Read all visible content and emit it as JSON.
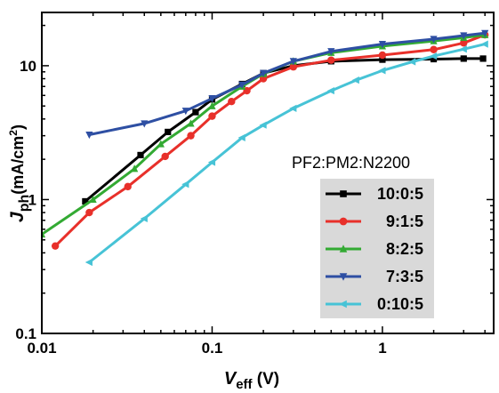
{
  "chart_data": {
    "type": "line",
    "xscale": "log",
    "yscale": "log",
    "xlim": [
      0.01,
      4.5
    ],
    "ylim": [
      0.1,
      25
    ],
    "x_ticks": [
      {
        "value": 0.01,
        "label": "0.01"
      },
      {
        "value": 0.1,
        "label": "0.1"
      },
      {
        "value": 1,
        "label": "1"
      }
    ],
    "y_ticks": [
      {
        "value": 0.1,
        "label": "0.1"
      },
      {
        "value": 1,
        "label": "1"
      },
      {
        "value": 10,
        "label": "10"
      }
    ],
    "xlabel": {
      "main": "V",
      "sub": "eff",
      "unit": " (V)"
    },
    "ylabel": {
      "main": "J",
      "sub": "ph",
      "unit_pre": "(mA/cm",
      "unit_sup": "2",
      "unit_post": ")"
    },
    "annotation": "PF2:PM2:N2200",
    "legend_position": "lower-right",
    "series": [
      {
        "name": "10:0:5",
        "color": "#000000",
        "marker": "square",
        "points": [
          [
            0.018,
            0.97
          ],
          [
            0.038,
            2.15
          ],
          [
            0.055,
            3.2
          ],
          [
            0.08,
            4.5
          ],
          [
            0.1,
            5.6
          ],
          [
            0.15,
            7.3
          ],
          [
            0.2,
            8.8
          ],
          [
            0.3,
            10.0
          ],
          [
            0.5,
            10.8
          ],
          [
            1.0,
            11.1
          ],
          [
            2.0,
            11.2
          ],
          [
            3.0,
            11.3
          ],
          [
            3.9,
            11.3
          ]
        ]
      },
      {
        "name": "9:1:5",
        "color": "#e8302a",
        "marker": "circle",
        "points": [
          [
            0.012,
            0.45
          ],
          [
            0.019,
            0.8
          ],
          [
            0.032,
            1.25
          ],
          [
            0.053,
            2.1
          ],
          [
            0.075,
            3.0
          ],
          [
            0.1,
            4.2
          ],
          [
            0.13,
            5.4
          ],
          [
            0.16,
            6.5
          ],
          [
            0.2,
            8.0
          ],
          [
            0.3,
            9.8
          ],
          [
            0.5,
            11.0
          ],
          [
            1.0,
            12.0
          ],
          [
            2.0,
            13.2
          ],
          [
            3.0,
            14.8
          ],
          [
            4.0,
            17.0
          ]
        ]
      },
      {
        "name": "8:2:5",
        "color": "#33aa33",
        "marker": "triangle-up",
        "points": [
          [
            0.01,
            0.55
          ],
          [
            0.02,
            1.0
          ],
          [
            0.035,
            1.7
          ],
          [
            0.05,
            2.6
          ],
          [
            0.075,
            3.7
          ],
          [
            0.1,
            5.0
          ],
          [
            0.15,
            7.0
          ],
          [
            0.2,
            8.7
          ],
          [
            0.3,
            10.8
          ],
          [
            0.5,
            12.5
          ],
          [
            1.0,
            14.0
          ],
          [
            2.0,
            15.3
          ],
          [
            3.0,
            16.2
          ],
          [
            4.0,
            17.0
          ]
        ]
      },
      {
        "name": "7:3:5",
        "color": "#2e4fa3",
        "marker": "triangle-down",
        "points": [
          [
            0.019,
            3.05
          ],
          [
            0.04,
            3.7
          ],
          [
            0.07,
            4.6
          ],
          [
            0.1,
            5.7
          ],
          [
            0.15,
            7.2
          ],
          [
            0.2,
            8.8
          ],
          [
            0.3,
            10.8
          ],
          [
            0.5,
            12.8
          ],
          [
            1.0,
            14.5
          ],
          [
            2.0,
            15.8
          ],
          [
            3.0,
            16.8
          ],
          [
            4.0,
            17.5
          ]
        ]
      },
      {
        "name": "0:10:5",
        "color": "#47c3d6",
        "marker": "triangle-left",
        "points": [
          [
            0.019,
            0.34
          ],
          [
            0.04,
            0.72
          ],
          [
            0.07,
            1.3
          ],
          [
            0.1,
            1.9
          ],
          [
            0.15,
            2.9
          ],
          [
            0.2,
            3.6
          ],
          [
            0.3,
            4.8
          ],
          [
            0.5,
            6.5
          ],
          [
            0.7,
            7.8
          ],
          [
            1.0,
            9.2
          ],
          [
            1.5,
            10.7
          ],
          [
            2.0,
            11.8
          ],
          [
            3.0,
            13.3
          ],
          [
            4.0,
            14.5
          ]
        ]
      }
    ]
  }
}
